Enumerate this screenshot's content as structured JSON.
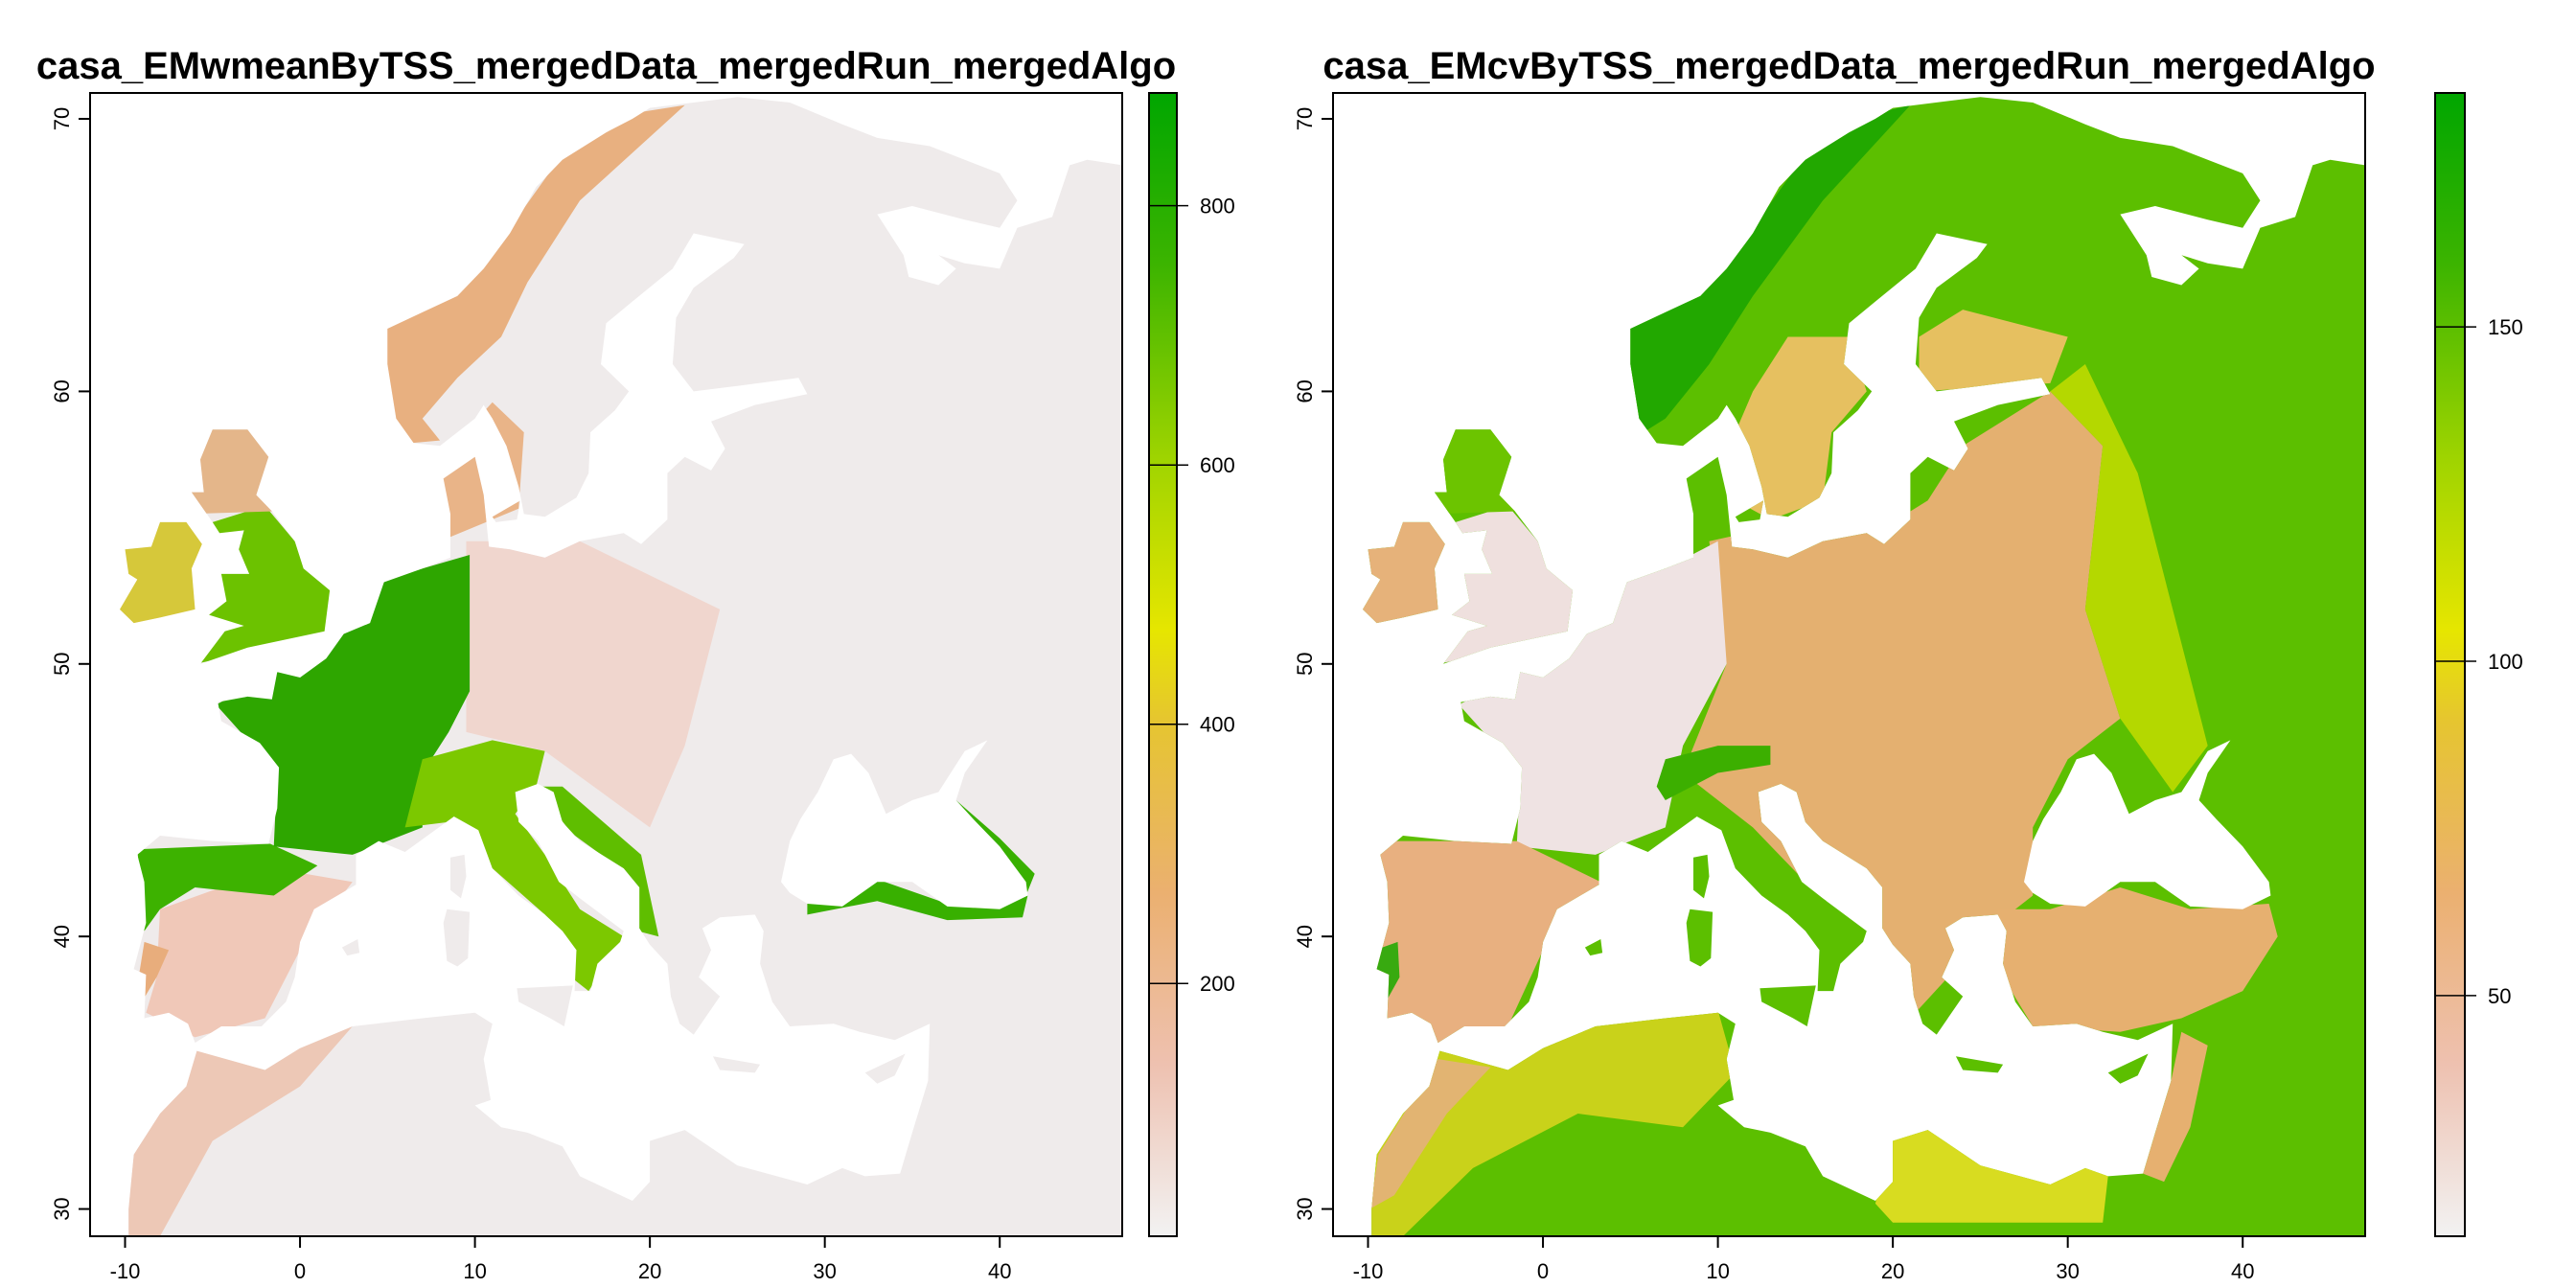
{
  "chart_data": [
    {
      "type": "heatmap",
      "title": "casa_EMwmeanByTSS_mergedData_mergedRun_mergedAlgo",
      "xlim": [
        -12,
        47
      ],
      "ylim": [
        29,
        70.95
      ],
      "xticks": [
        "-10",
        "0",
        "10",
        "20",
        "30",
        "40"
      ],
      "yticks": [
        "30",
        "40",
        "50",
        "60",
        "70"
      ],
      "colorbar": {
        "zlim": [
          5,
          887
        ],
        "ticks": [
          "200",
          "400",
          "600",
          "800"
        ],
        "palette": [
          "#f2f2f2",
          "#eec1b0",
          "#ebb070",
          "#e6c530",
          "#e6e600",
          "#9fd400",
          "#3cb400",
          "#00a600"
        ]
      },
      "description_values": "high values (green, 600-880) over France, Benelux, N Spain, Britain, Alps/Italy, Balkan coast, Black Sea coasts; low values (<100) over eastern Europe, Scandinavia interior, North Africa"
    },
    {
      "type": "heatmap",
      "title": "casa_EMcvByTSS_mergedData_mergedRun_mergedAlgo",
      "xlim": [
        -12,
        47
      ],
      "ylim": [
        29,
        70.95
      ],
      "xticks": [
        "-10",
        "0",
        "10",
        "20",
        "30",
        "40"
      ],
      "yticks": [
        "30",
        "40",
        "50",
        "60",
        "70"
      ],
      "colorbar": {
        "zlim": [
          14,
          185
        ],
        "ticks": [
          "50",
          "100",
          "150"
        ],
        "palette": [
          "#f2f2f2",
          "#eec1b0",
          "#ebb070",
          "#e6c530",
          "#e6e600",
          "#9fd400",
          "#3cb400",
          "#00a600"
        ]
      },
      "description_values": "low values (<50) over France/W Europe; ~60-100 central Europe, Iberia, Turkey; high (~140-160) over Russia, Scandinavia, Sahara"
    }
  ]
}
